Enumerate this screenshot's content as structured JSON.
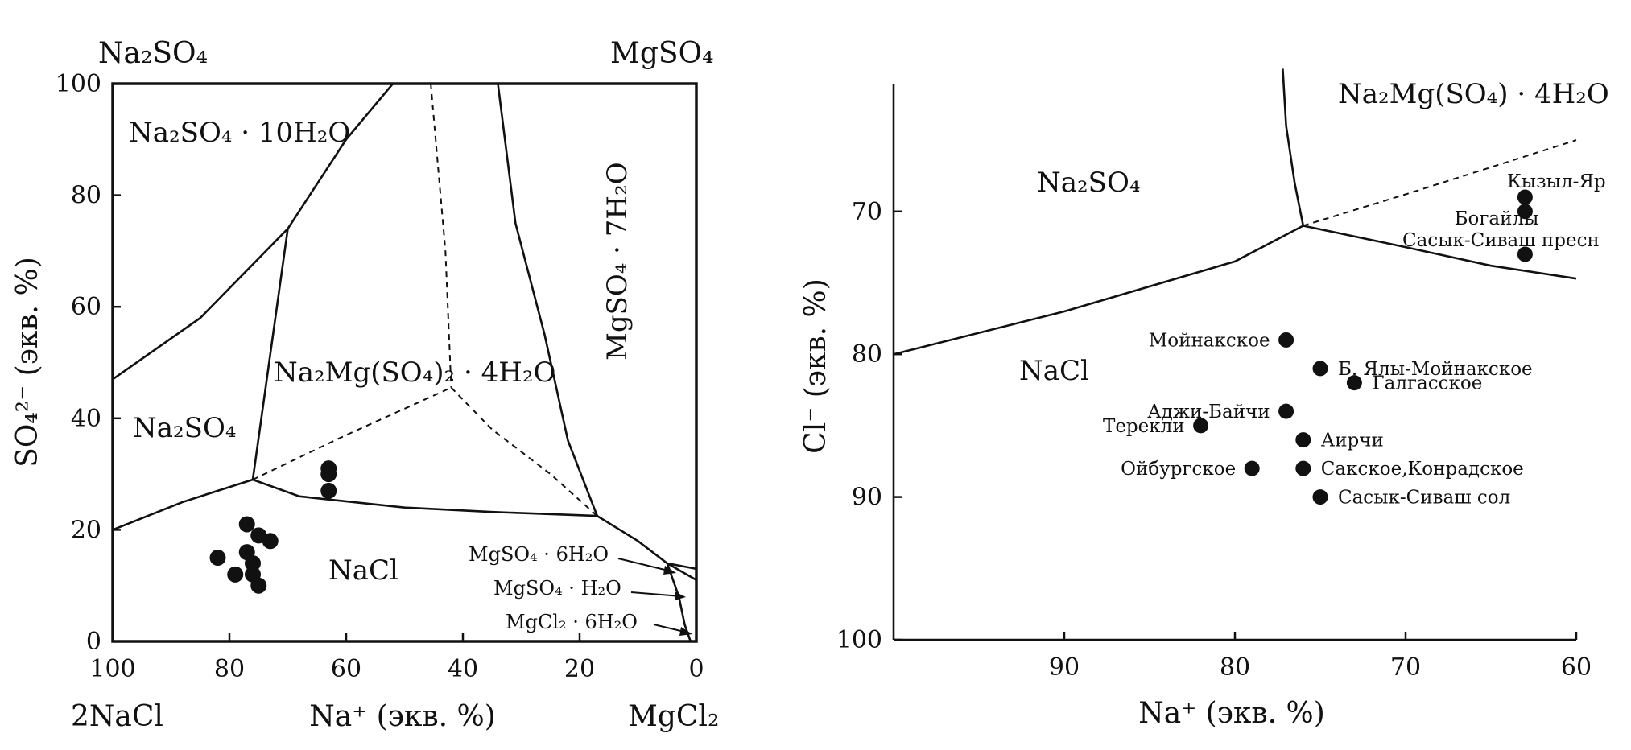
{
  "chart_data": [
    {
      "type": "scatter",
      "chart": "left",
      "xlabel": "Na⁺ (экв. %)",
      "ylabel": "SO₄²⁻ (экв. %)",
      "xlim": [
        100,
        0
      ],
      "ylim": [
        0,
        100
      ],
      "x_ticks": [
        "100",
        "80",
        "60",
        "40",
        "20",
        "0"
      ],
      "y_ticks": [
        "0",
        "20",
        "40",
        "60",
        "80",
        "100"
      ],
      "corners": {
        "top_left": "Na₂SO₄",
        "top_right": "MgSO₄",
        "bottom_left": "2NaCl",
        "bottom_right": "MgCl₂"
      },
      "phase_labels": [
        "Na₂SO₄ · 10H₂O",
        "Na₂SO₄",
        "Na₂Mg(SO₄)₂ · 4H₂O",
        "MgSO₄ · 7H₂O",
        "NaCl",
        "MgSO₄ · 6H₂O",
        "MgSO₄ · H₂O",
        "MgCl₂ · 6H₂O"
      ],
      "boundaries_solid": [
        [
          [
            100,
            47
          ],
          [
            85,
            58
          ],
          [
            70,
            74
          ],
          [
            60,
            90
          ],
          [
            52,
            100
          ]
        ],
        [
          [
            70,
            74
          ],
          [
            76,
            29
          ]
        ],
        [
          [
            100,
            20
          ],
          [
            88,
            25
          ],
          [
            76,
            29
          ]
        ],
        [
          [
            76,
            29
          ],
          [
            68,
            26
          ],
          [
            50,
            24
          ],
          [
            35,
            23.2
          ],
          [
            17,
            22.5
          ]
        ],
        [
          [
            34,
            100
          ],
          [
            31,
            75
          ],
          [
            26,
            55
          ],
          [
            22,
            36
          ],
          [
            17,
            22.5
          ]
        ],
        [
          [
            17,
            22.5
          ],
          [
            10,
            18
          ],
          [
            5,
            14
          ],
          [
            0,
            13
          ]
        ],
        [
          [
            5,
            14
          ],
          [
            0,
            11
          ]
        ],
        [
          [
            5,
            14
          ],
          [
            3,
            8
          ],
          [
            2,
            3
          ],
          [
            1,
            0
          ]
        ]
      ],
      "boundaries_dashed": [
        [
          [
            45.5,
            100
          ],
          [
            43,
            70
          ],
          [
            42,
            45.5
          ]
        ],
        [
          [
            76,
            29
          ],
          [
            60,
            37
          ],
          [
            42,
            45.5
          ]
        ],
        [
          [
            42,
            45.5
          ],
          [
            35,
            38
          ],
          [
            25,
            30
          ],
          [
            17,
            22.5
          ]
        ]
      ],
      "points": [
        {
          "x": 82,
          "y": 15
        },
        {
          "x": 79,
          "y": 12
        },
        {
          "x": 77,
          "y": 21
        },
        {
          "x": 77,
          "y": 16
        },
        {
          "x": 76,
          "y": 14
        },
        {
          "x": 76,
          "y": 12
        },
        {
          "x": 75,
          "y": 19
        },
        {
          "x": 75,
          "y": 10
        },
        {
          "x": 73,
          "y": 18
        },
        {
          "x": 63,
          "y": 31
        },
        {
          "x": 63,
          "y": 30
        },
        {
          "x": 63,
          "y": 27
        }
      ]
    },
    {
      "type": "scatter",
      "chart": "right",
      "xlabel": "Na⁺ (экв. %)",
      "ylabel": "Cl⁻ (экв. %)",
      "xlim": [
        100,
        60
      ],
      "ylim": [
        100,
        61
      ],
      "x_ticks": [
        "90",
        "80",
        "70",
        "60"
      ],
      "y_ticks": [
        "70",
        "80",
        "90",
        "100"
      ],
      "phase_labels": [
        "Na₂SO₄",
        "Na₂Mg(SO₄) · 4H₂O",
        "NaCl"
      ],
      "boundaries_solid": [
        [
          [
            100,
            80
          ],
          [
            90,
            77
          ],
          [
            80,
            73.5
          ],
          [
            76,
            71
          ]
        ],
        [
          [
            76,
            71
          ],
          [
            70,
            72.5
          ],
          [
            65,
            73.8
          ],
          [
            60,
            74.7
          ]
        ],
        [
          [
            76,
            71
          ],
          [
            76.5,
            68
          ],
          [
            77,
            64
          ],
          [
            77.2,
            60
          ]
        ]
      ],
      "boundaries_dashed": [
        [
          [
            76,
            71
          ],
          [
            70,
            68.8
          ],
          [
            60,
            65
          ]
        ]
      ],
      "points": [
        {
          "x": 63,
          "y": 69,
          "label": "Кызыл-Яр"
        },
        {
          "x": 63,
          "y": 70,
          "label": "Богайлы"
        },
        {
          "x": 63,
          "y": 73,
          "label": "Сасык-Сиваш пресн"
        },
        {
          "x": 77,
          "y": 79,
          "label": "Мойнакское"
        },
        {
          "x": 75,
          "y": 81,
          "label": "Б. Ялы-Мойнакское"
        },
        {
          "x": 73,
          "y": 82,
          "label": "Галгасское"
        },
        {
          "x": 77,
          "y": 84,
          "label": "Аджи-Байчи"
        },
        {
          "x": 82,
          "y": 85,
          "label": "Терекли"
        },
        {
          "x": 76,
          "y": 86,
          "label": "Аирчи"
        },
        {
          "x": 79,
          "y": 88,
          "label": "Ойбургское"
        },
        {
          "x": 76,
          "y": 88,
          "label": "Сакское,Конрадское"
        },
        {
          "x": 75,
          "y": 90,
          "label": "Сасык-Сиваш сол"
        }
      ]
    }
  ]
}
